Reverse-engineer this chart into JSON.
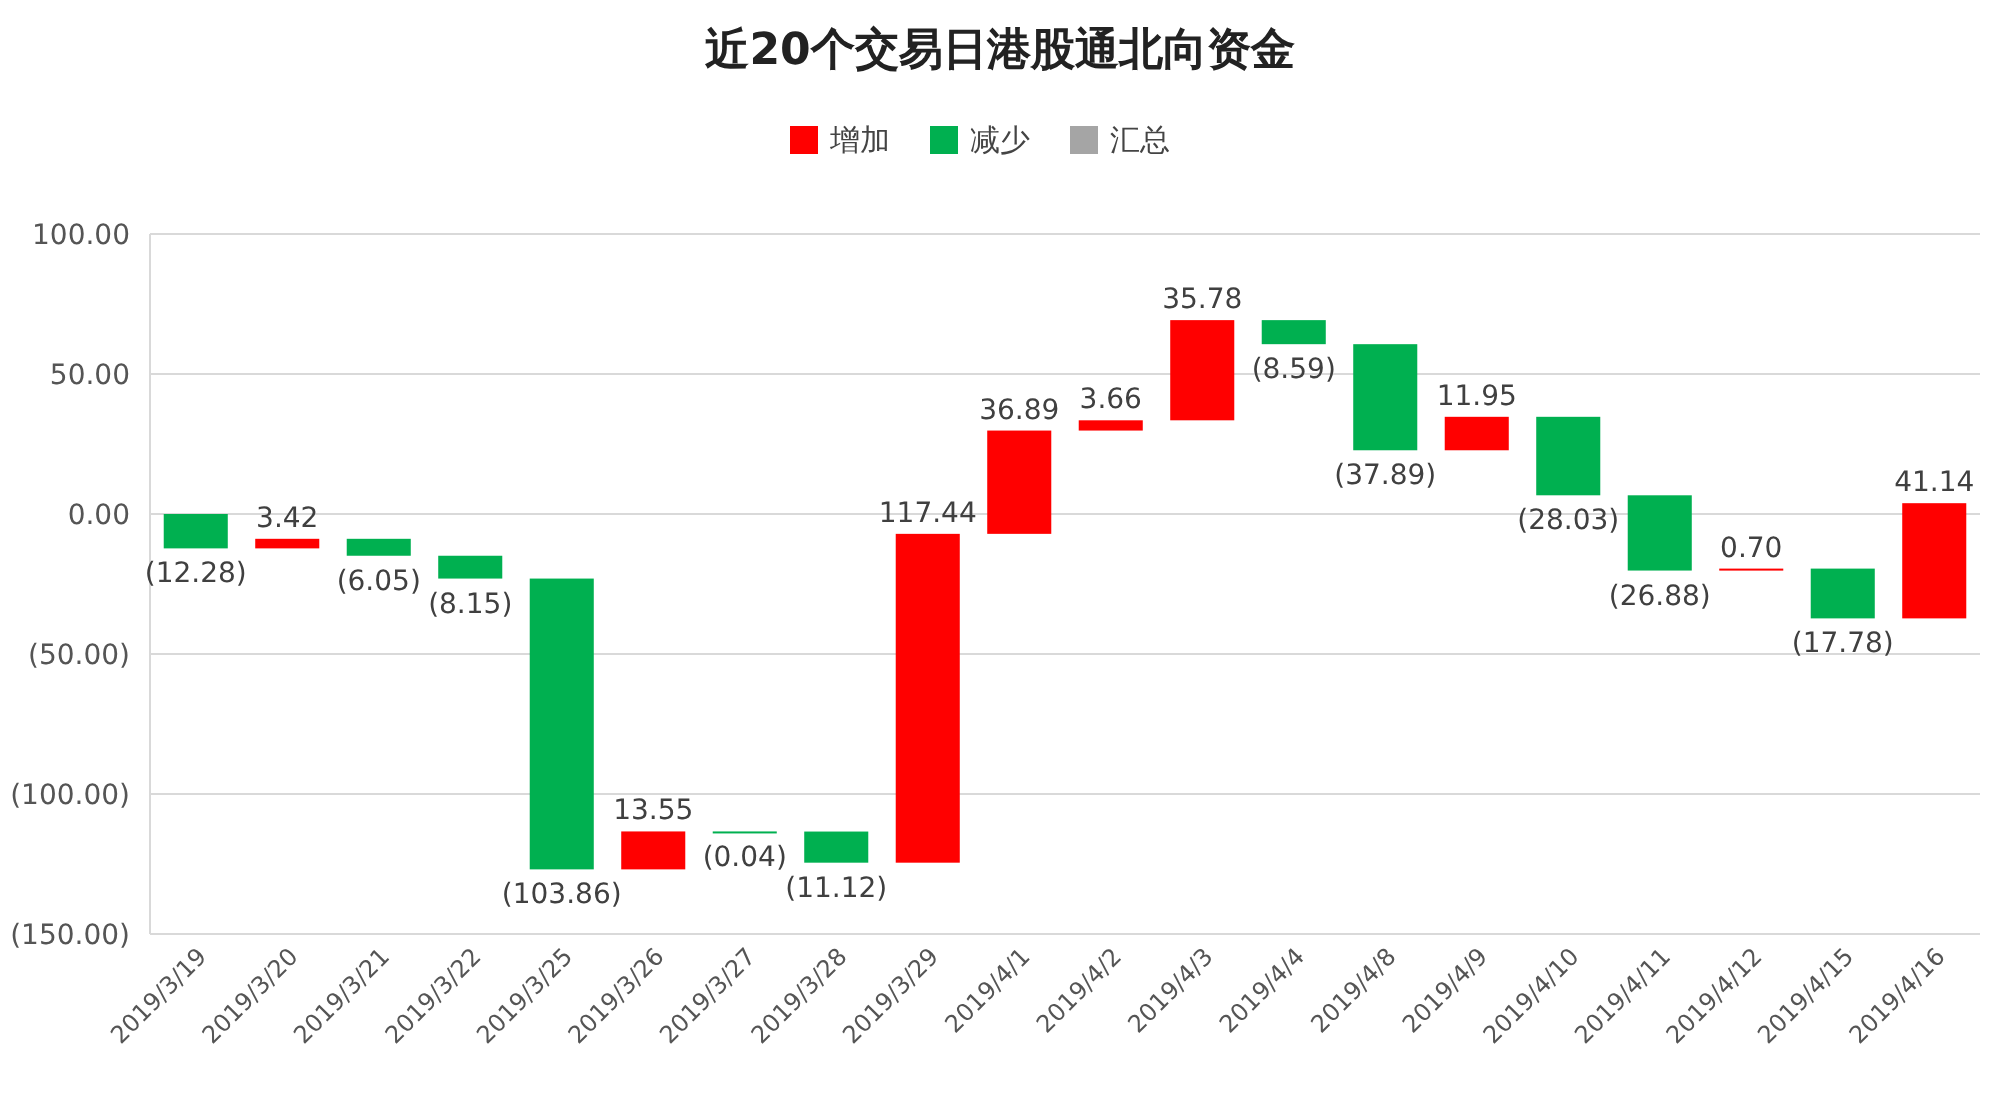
{
  "chart_data": {
    "type": "bar",
    "title": "近20个交易日港股通北向资金",
    "categories": [
      "2019/3/19",
      "2019/3/20",
      "2019/3/21",
      "2019/3/22",
      "2019/3/25",
      "2019/3/26",
      "2019/3/27",
      "2019/3/28",
      "2019/3/29",
      "2019/4/1",
      "2019/4/2",
      "2019/4/3",
      "2019/4/4",
      "2019/4/8",
      "2019/4/9",
      "2019/4/10",
      "2019/4/11",
      "2019/4/12",
      "2019/4/15",
      "2019/4/16"
    ],
    "series": [
      {
        "name": "增加",
        "color": "#ff0000",
        "base": [
          null,
          -12.28,
          null,
          null,
          null,
          -126.92,
          null,
          null,
          -124.53,
          -7.09,
          29.8,
          33.46,
          null,
          null,
          22.76,
          null,
          null,
          -20.2,
          null,
          -37.28
        ],
        "values": [
          null,
          3.42,
          null,
          null,
          null,
          13.55,
          null,
          null,
          117.44,
          36.89,
          3.66,
          35.78,
          null,
          null,
          11.95,
          null,
          null,
          0.7,
          null,
          41.14
        ],
        "value_labels": [
          null,
          "3.42",
          null,
          null,
          null,
          "13.55",
          null,
          null,
          "117.44",
          "36.89",
          "3.66",
          "35.78",
          null,
          null,
          "11.95",
          null,
          null,
          "0.70",
          null,
          "41.14"
        ]
      },
      {
        "name": "减少",
        "color": "#00b050",
        "base": [
          0,
          null,
          -8.86,
          -14.91,
          -23.06,
          null,
          -113.37,
          -113.41,
          null,
          null,
          null,
          null,
          69.24,
          60.65,
          null,
          34.71,
          6.68,
          null,
          -19.5,
          null
        ],
        "values": [
          -12.28,
          null,
          -6.05,
          -8.15,
          -103.86,
          null,
          -0.04,
          -11.12,
          null,
          null,
          null,
          null,
          -8.59,
          -37.89,
          null,
          -28.03,
          -26.88,
          null,
          -17.78,
          null
        ],
        "value_labels": [
          "(12.28)",
          null,
          "(6.05)",
          "(8.15)",
          "(103.86)",
          null,
          "(0.04)",
          "(11.12)",
          null,
          null,
          null,
          null,
          "(8.59)",
          "(37.89)",
          null,
          "(28.03)",
          "(26.88)",
          null,
          "(17.78)",
          null
        ]
      },
      {
        "name": "汇总",
        "color": "#a5a5a5",
        "values": [
          null,
          null,
          null,
          null,
          null,
          null,
          null,
          null,
          null,
          null,
          null,
          null,
          null,
          null,
          null,
          null,
          null,
          null,
          null,
          null
        ]
      }
    ],
    "ylim": [
      -150,
      100
    ],
    "yticks": [
      {
        "value": -150,
        "label": "(150.00)"
      },
      {
        "value": -100,
        "label": "(100.00)"
      },
      {
        "value": -50,
        "label": "(50.00)"
      },
      {
        "value": 0,
        "label": "0.00"
      },
      {
        "value": 50,
        "label": "50.00"
      },
      {
        "value": 100,
        "label": "100.00"
      }
    ],
    "grid": "y",
    "legend": "top"
  }
}
